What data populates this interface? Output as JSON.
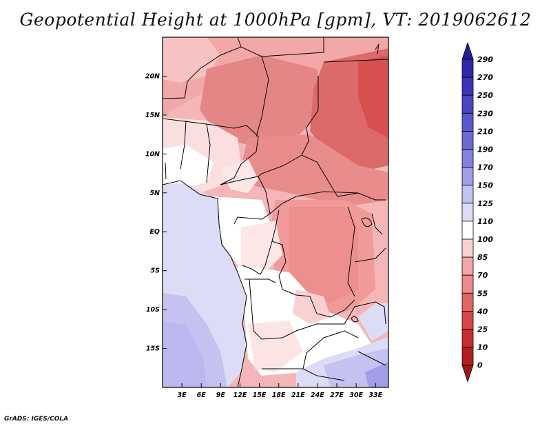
{
  "title": "Geopotential Height at 1000hPa [gpm], VT: 2019062612",
  "footer": "GrADS: IGES/COLA",
  "map": {
    "lon_range": [
      0,
      35
    ],
    "lat_range": [
      -20,
      25
    ],
    "x_ticks": [
      {
        "lon": 3,
        "label": "3E"
      },
      {
        "lon": 6,
        "label": "6E"
      },
      {
        "lon": 9,
        "label": "9E"
      },
      {
        "lon": 12,
        "label": "12E"
      },
      {
        "lon": 15,
        "label": "15E"
      },
      {
        "lon": 18,
        "label": "18E"
      },
      {
        "lon": 21,
        "label": "21E"
      },
      {
        "lon": 24,
        "label": "24E"
      },
      {
        "lon": 27,
        "label": "27E"
      },
      {
        "lon": 30,
        "label": "30E"
      },
      {
        "lon": 33,
        "label": "33E"
      }
    ],
    "y_ticks": [
      {
        "lat": 20,
        "label": "20N"
      },
      {
        "lat": 15,
        "label": "15N"
      },
      {
        "lat": 10,
        "label": "10N"
      },
      {
        "lat": 5,
        "label": "5N"
      },
      {
        "lat": 0,
        "label": "EQ"
      },
      {
        "lat": -5,
        "label": "5S"
      },
      {
        "lat": -10,
        "label": "10S"
      },
      {
        "lat": -15,
        "label": "15S"
      }
    ]
  },
  "colorbar": {
    "labels": [
      "290",
      "270",
      "250",
      "230",
      "210",
      "190",
      "170",
      "150",
      "125",
      "110",
      "100",
      "85",
      "70",
      "55",
      "40",
      "25",
      "10",
      "0"
    ],
    "colors": [
      "#251e9a",
      "#2e27aa",
      "#3a34b8",
      "#4a45c4",
      "#5a58cf",
      "#6c6ad8",
      "#8382e0",
      "#a09ee8",
      "#c3c2f0",
      "#dcdcf6",
      "#ffffff",
      "#fbd2d2",
      "#f4a6a6",
      "#ec8a8a",
      "#e26565",
      "#d94646",
      "#c92e2e",
      "#b31f1f",
      "#a01515"
    ]
  }
}
